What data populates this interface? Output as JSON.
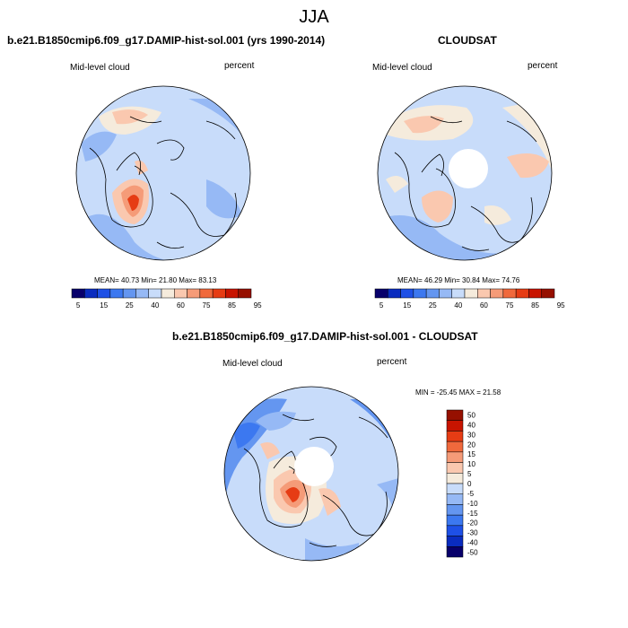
{
  "figure_title": "JJA",
  "panels": [
    {
      "title": "b.e21.B1850cmip6.f09_g17.DAMIP-hist-sol.001 (yrs 1990-2014)",
      "left_label": "Mid-level cloud",
      "right_label": "percent",
      "stats": "MEAN=  40.73  Min=  21.80  Max=  83.13"
    },
    {
      "title": "CLOUDSAT",
      "left_label": "Mid-level cloud",
      "right_label": "percent",
      "stats": "MEAN=  46.29  Min=  30.84  Max=  74.76"
    },
    {
      "title": "b.e21.B1850cmip6.f09_g17.DAMIP-hist-sol.001 - CLOUDSAT",
      "left_label": "Mid-level cloud",
      "right_label": "percent",
      "stats": "MIN = -25.45 MAX =  21.58"
    }
  ],
  "colorbar_abs": {
    "colors": [
      "#08006b",
      "#0a2cbf",
      "#1e50e6",
      "#3c78f0",
      "#6496f0",
      "#96b9f5",
      "#c8dcfa",
      "#f5ebdc",
      "#fac8af",
      "#f59b78",
      "#f0693c",
      "#e63c14",
      "#c81400",
      "#961000"
    ],
    "labels": [
      "5",
      "15",
      "25",
      "40",
      "60",
      "75",
      "85",
      "95"
    ]
  },
  "colorbar_diff": {
    "colors": [
      "#961000",
      "#c81400",
      "#e63c14",
      "#f0693c",
      "#f59b78",
      "#fac8af",
      "#f5ebdc",
      "#c8dcfa",
      "#96b9f5",
      "#6496f0",
      "#3c78f0",
      "#1e50e6",
      "#0a2cbf",
      "#08006b"
    ],
    "labels": [
      "50",
      "40",
      "30",
      "20",
      "15",
      "10",
      "5",
      "0",
      "-5",
      "-10",
      "-15",
      "-20",
      "-30",
      "-40",
      "-50"
    ]
  },
  "map_colors": {
    "blue_light": "#c8dcfa",
    "blue_mid": "#96b9f5",
    "blue_dark": "#6496f0",
    "blue_deep": "#3c78f0",
    "peach": "#f5ebdc",
    "salmon": "#fac8af",
    "orange": "#f59b78",
    "red": "#e63c14"
  }
}
